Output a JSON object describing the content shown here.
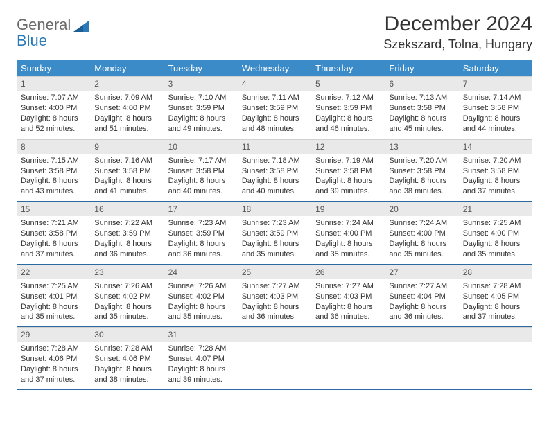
{
  "logo": {
    "word1": "General",
    "word2": "Blue"
  },
  "title": "December 2024",
  "location": "Szekszard, Tolna, Hungary",
  "headers": [
    "Sunday",
    "Monday",
    "Tuesday",
    "Wednesday",
    "Thursday",
    "Friday",
    "Saturday"
  ],
  "colors": {
    "header_bg": "#3b8bc9",
    "header_text": "#ffffff",
    "daynum_bg": "#e9e9e9",
    "row_divider": "#2a6aa0",
    "logo_gray": "#6a6a6a",
    "logo_blue": "#2a7ab9"
  },
  "weeks": [
    [
      {
        "n": "1",
        "sr": "Sunrise: 7:07 AM",
        "ss": "Sunset: 4:00 PM",
        "d1": "Daylight: 8 hours",
        "d2": "and 52 minutes."
      },
      {
        "n": "2",
        "sr": "Sunrise: 7:09 AM",
        "ss": "Sunset: 4:00 PM",
        "d1": "Daylight: 8 hours",
        "d2": "and 51 minutes."
      },
      {
        "n": "3",
        "sr": "Sunrise: 7:10 AM",
        "ss": "Sunset: 3:59 PM",
        "d1": "Daylight: 8 hours",
        "d2": "and 49 minutes."
      },
      {
        "n": "4",
        "sr": "Sunrise: 7:11 AM",
        "ss": "Sunset: 3:59 PM",
        "d1": "Daylight: 8 hours",
        "d2": "and 48 minutes."
      },
      {
        "n": "5",
        "sr": "Sunrise: 7:12 AM",
        "ss": "Sunset: 3:59 PM",
        "d1": "Daylight: 8 hours",
        "d2": "and 46 minutes."
      },
      {
        "n": "6",
        "sr": "Sunrise: 7:13 AM",
        "ss": "Sunset: 3:58 PM",
        "d1": "Daylight: 8 hours",
        "d2": "and 45 minutes."
      },
      {
        "n": "7",
        "sr": "Sunrise: 7:14 AM",
        "ss": "Sunset: 3:58 PM",
        "d1": "Daylight: 8 hours",
        "d2": "and 44 minutes."
      }
    ],
    [
      {
        "n": "8",
        "sr": "Sunrise: 7:15 AM",
        "ss": "Sunset: 3:58 PM",
        "d1": "Daylight: 8 hours",
        "d2": "and 43 minutes."
      },
      {
        "n": "9",
        "sr": "Sunrise: 7:16 AM",
        "ss": "Sunset: 3:58 PM",
        "d1": "Daylight: 8 hours",
        "d2": "and 41 minutes."
      },
      {
        "n": "10",
        "sr": "Sunrise: 7:17 AM",
        "ss": "Sunset: 3:58 PM",
        "d1": "Daylight: 8 hours",
        "d2": "and 40 minutes."
      },
      {
        "n": "11",
        "sr": "Sunrise: 7:18 AM",
        "ss": "Sunset: 3:58 PM",
        "d1": "Daylight: 8 hours",
        "d2": "and 40 minutes."
      },
      {
        "n": "12",
        "sr": "Sunrise: 7:19 AM",
        "ss": "Sunset: 3:58 PM",
        "d1": "Daylight: 8 hours",
        "d2": "and 39 minutes."
      },
      {
        "n": "13",
        "sr": "Sunrise: 7:20 AM",
        "ss": "Sunset: 3:58 PM",
        "d1": "Daylight: 8 hours",
        "d2": "and 38 minutes."
      },
      {
        "n": "14",
        "sr": "Sunrise: 7:20 AM",
        "ss": "Sunset: 3:58 PM",
        "d1": "Daylight: 8 hours",
        "d2": "and 37 minutes."
      }
    ],
    [
      {
        "n": "15",
        "sr": "Sunrise: 7:21 AM",
        "ss": "Sunset: 3:58 PM",
        "d1": "Daylight: 8 hours",
        "d2": "and 37 minutes."
      },
      {
        "n": "16",
        "sr": "Sunrise: 7:22 AM",
        "ss": "Sunset: 3:59 PM",
        "d1": "Daylight: 8 hours",
        "d2": "and 36 minutes."
      },
      {
        "n": "17",
        "sr": "Sunrise: 7:23 AM",
        "ss": "Sunset: 3:59 PM",
        "d1": "Daylight: 8 hours",
        "d2": "and 36 minutes."
      },
      {
        "n": "18",
        "sr": "Sunrise: 7:23 AM",
        "ss": "Sunset: 3:59 PM",
        "d1": "Daylight: 8 hours",
        "d2": "and 35 minutes."
      },
      {
        "n": "19",
        "sr": "Sunrise: 7:24 AM",
        "ss": "Sunset: 4:00 PM",
        "d1": "Daylight: 8 hours",
        "d2": "and 35 minutes."
      },
      {
        "n": "20",
        "sr": "Sunrise: 7:24 AM",
        "ss": "Sunset: 4:00 PM",
        "d1": "Daylight: 8 hours",
        "d2": "and 35 minutes."
      },
      {
        "n": "21",
        "sr": "Sunrise: 7:25 AM",
        "ss": "Sunset: 4:00 PM",
        "d1": "Daylight: 8 hours",
        "d2": "and 35 minutes."
      }
    ],
    [
      {
        "n": "22",
        "sr": "Sunrise: 7:25 AM",
        "ss": "Sunset: 4:01 PM",
        "d1": "Daylight: 8 hours",
        "d2": "and 35 minutes."
      },
      {
        "n": "23",
        "sr": "Sunrise: 7:26 AM",
        "ss": "Sunset: 4:02 PM",
        "d1": "Daylight: 8 hours",
        "d2": "and 35 minutes."
      },
      {
        "n": "24",
        "sr": "Sunrise: 7:26 AM",
        "ss": "Sunset: 4:02 PM",
        "d1": "Daylight: 8 hours",
        "d2": "and 35 minutes."
      },
      {
        "n": "25",
        "sr": "Sunrise: 7:27 AM",
        "ss": "Sunset: 4:03 PM",
        "d1": "Daylight: 8 hours",
        "d2": "and 36 minutes."
      },
      {
        "n": "26",
        "sr": "Sunrise: 7:27 AM",
        "ss": "Sunset: 4:03 PM",
        "d1": "Daylight: 8 hours",
        "d2": "and 36 minutes."
      },
      {
        "n": "27",
        "sr": "Sunrise: 7:27 AM",
        "ss": "Sunset: 4:04 PM",
        "d1": "Daylight: 8 hours",
        "d2": "and 36 minutes."
      },
      {
        "n": "28",
        "sr": "Sunrise: 7:28 AM",
        "ss": "Sunset: 4:05 PM",
        "d1": "Daylight: 8 hours",
        "d2": "and 37 minutes."
      }
    ],
    [
      {
        "n": "29",
        "sr": "Sunrise: 7:28 AM",
        "ss": "Sunset: 4:06 PM",
        "d1": "Daylight: 8 hours",
        "d2": "and 37 minutes."
      },
      {
        "n": "30",
        "sr": "Sunrise: 7:28 AM",
        "ss": "Sunset: 4:06 PM",
        "d1": "Daylight: 8 hours",
        "d2": "and 38 minutes."
      },
      {
        "n": "31",
        "sr": "Sunrise: 7:28 AM",
        "ss": "Sunset: 4:07 PM",
        "d1": "Daylight: 8 hours",
        "d2": "and 39 minutes."
      },
      {
        "empty": true
      },
      {
        "empty": true
      },
      {
        "empty": true
      },
      {
        "empty": true
      }
    ]
  ]
}
